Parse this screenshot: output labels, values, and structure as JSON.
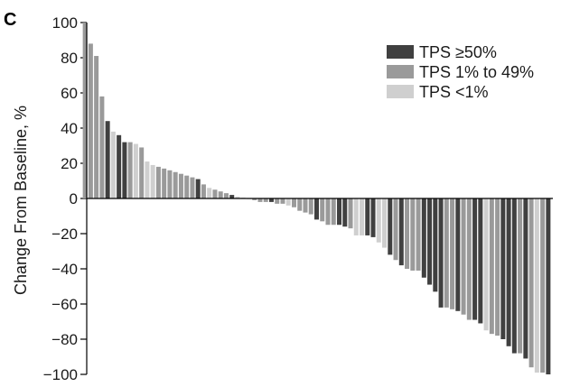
{
  "panel_label": "C",
  "colors": {
    "tps_high": "#404040",
    "tps_mid": "#9a9a9a",
    "tps_low": "#cfcfcf",
    "axis": "#000000"
  },
  "chart_data": {
    "type": "bar",
    "ylabel": "Change From Baseline, %",
    "xlabel": "",
    "ylim": [
      -100,
      100
    ],
    "yticks": [
      100,
      80,
      60,
      40,
      20,
      0,
      -20,
      -40,
      -60,
      -80,
      -100
    ],
    "ytick_labels": [
      "100",
      "80",
      "60",
      "40",
      "20",
      "0",
      "−20",
      "−40",
      "−60",
      "−80",
      "−100"
    ],
    "legend": {
      "position": "top-right",
      "entries": [
        {
          "key": "tps_high",
          "label": "TPS ≥50%"
        },
        {
          "key": "tps_mid",
          "label": "TPS 1% to 49%"
        },
        {
          "key": "tps_low",
          "label": "TPS <1%"
        }
      ]
    },
    "bars": [
      {
        "value": 100,
        "group": "tps_mid"
      },
      {
        "value": 88,
        "group": "tps_mid"
      },
      {
        "value": 81,
        "group": "tps_mid"
      },
      {
        "value": 58,
        "group": "tps_mid"
      },
      {
        "value": 44,
        "group": "tps_high"
      },
      {
        "value": 38,
        "group": "tps_low"
      },
      {
        "value": 36,
        "group": "tps_high"
      },
      {
        "value": 32,
        "group": "tps_high"
      },
      {
        "value": 32,
        "group": "tps_mid"
      },
      {
        "value": 31,
        "group": "tps_low"
      },
      {
        "value": 29,
        "group": "tps_mid"
      },
      {
        "value": 21,
        "group": "tps_low"
      },
      {
        "value": 19,
        "group": "tps_low"
      },
      {
        "value": 18,
        "group": "tps_mid"
      },
      {
        "value": 17,
        "group": "tps_mid"
      },
      {
        "value": 16,
        "group": "tps_mid"
      },
      {
        "value": 15,
        "group": "tps_mid"
      },
      {
        "value": 14,
        "group": "tps_mid"
      },
      {
        "value": 13,
        "group": "tps_mid"
      },
      {
        "value": 12,
        "group": "tps_mid"
      },
      {
        "value": 11,
        "group": "tps_high"
      },
      {
        "value": 8,
        "group": "tps_mid"
      },
      {
        "value": 6,
        "group": "tps_low"
      },
      {
        "value": 5,
        "group": "tps_mid"
      },
      {
        "value": 4,
        "group": "tps_mid"
      },
      {
        "value": 3,
        "group": "tps_mid"
      },
      {
        "value": 2,
        "group": "tps_high"
      },
      {
        "value": 1,
        "group": "tps_low"
      },
      {
        "value": 0.5,
        "group": "tps_low"
      },
      {
        "value": 0,
        "group": "tps_mid"
      },
      {
        "value": -1,
        "group": "tps_mid"
      },
      {
        "value": -2,
        "group": "tps_mid"
      },
      {
        "value": -2,
        "group": "tps_mid"
      },
      {
        "value": -2,
        "group": "tps_high"
      },
      {
        "value": -3,
        "group": "tps_mid"
      },
      {
        "value": -3,
        "group": "tps_mid"
      },
      {
        "value": -4,
        "group": "tps_low"
      },
      {
        "value": -5,
        "group": "tps_mid"
      },
      {
        "value": -7,
        "group": "tps_mid"
      },
      {
        "value": -8,
        "group": "tps_mid"
      },
      {
        "value": -9,
        "group": "tps_mid"
      },
      {
        "value": -12,
        "group": "tps_high"
      },
      {
        "value": -13,
        "group": "tps_mid"
      },
      {
        "value": -15,
        "group": "tps_mid"
      },
      {
        "value": -15,
        "group": "tps_mid"
      },
      {
        "value": -15,
        "group": "tps_high"
      },
      {
        "value": -16,
        "group": "tps_high"
      },
      {
        "value": -17,
        "group": "tps_mid"
      },
      {
        "value": -21,
        "group": "tps_low"
      },
      {
        "value": -21,
        "group": "tps_low"
      },
      {
        "value": -21,
        "group": "tps_high"
      },
      {
        "value": -22,
        "group": "tps_high"
      },
      {
        "value": -25,
        "group": "tps_low"
      },
      {
        "value": -28,
        "group": "tps_low"
      },
      {
        "value": -32,
        "group": "tps_high"
      },
      {
        "value": -35,
        "group": "tps_mid"
      },
      {
        "value": -38,
        "group": "tps_high"
      },
      {
        "value": -40,
        "group": "tps_mid"
      },
      {
        "value": -41,
        "group": "tps_mid"
      },
      {
        "value": -41,
        "group": "tps_mid"
      },
      {
        "value": -45,
        "group": "tps_high"
      },
      {
        "value": -49,
        "group": "tps_high"
      },
      {
        "value": -53,
        "group": "tps_high"
      },
      {
        "value": -62,
        "group": "tps_high"
      },
      {
        "value": -62,
        "group": "tps_mid"
      },
      {
        "value": -63,
        "group": "tps_mid"
      },
      {
        "value": -64,
        "group": "tps_high"
      },
      {
        "value": -66,
        "group": "tps_mid"
      },
      {
        "value": -69,
        "group": "tps_mid"
      },
      {
        "value": -69,
        "group": "tps_high"
      },
      {
        "value": -71,
        "group": "tps_high"
      },
      {
        "value": -75,
        "group": "tps_low"
      },
      {
        "value": -77,
        "group": "tps_mid"
      },
      {
        "value": -78,
        "group": "tps_mid"
      },
      {
        "value": -80,
        "group": "tps_high"
      },
      {
        "value": -84,
        "group": "tps_high"
      },
      {
        "value": -88,
        "group": "tps_high"
      },
      {
        "value": -88,
        "group": "tps_mid"
      },
      {
        "value": -91,
        "group": "tps_high"
      },
      {
        "value": -96,
        "group": "tps_mid"
      },
      {
        "value": -99,
        "group": "tps_low"
      },
      {
        "value": -99,
        "group": "tps_mid"
      },
      {
        "value": -100,
        "group": "tps_high"
      }
    ]
  }
}
